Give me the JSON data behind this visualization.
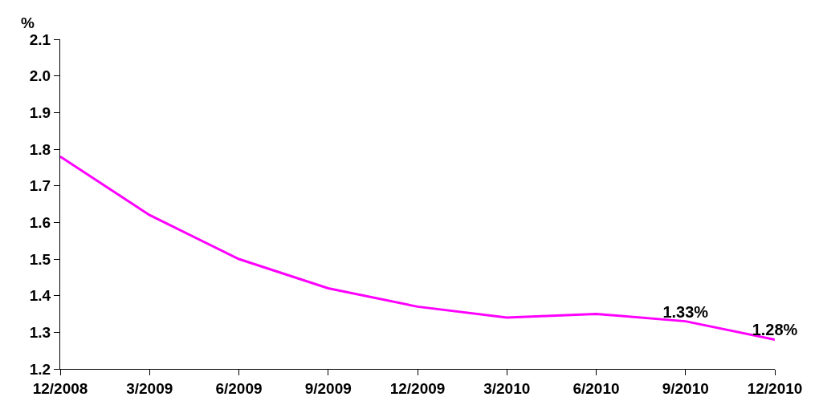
{
  "chart_data": {
    "type": "line",
    "ylabel": "%",
    "categories": [
      "12/2008",
      "3/2009",
      "6/2009",
      "9/2009",
      "12/2009",
      "3/2010",
      "6/2010",
      "9/2010",
      "12/2010"
    ],
    "series": [
      {
        "color": "#ff00ff",
        "values": [
          1.78,
          1.62,
          1.5,
          1.42,
          1.37,
          1.34,
          1.35,
          1.33,
          1.28
        ],
        "value_labels": [
          null,
          null,
          null,
          null,
          null,
          null,
          null,
          "1.33%",
          "1.28%"
        ]
      }
    ],
    "ylim": [
      1.2,
      2.1
    ],
    "yticks": [
      "1.2",
      "1.3",
      "1.4",
      "1.5",
      "1.6",
      "1.7",
      "1.8",
      "1.9",
      "2.0",
      "2.1"
    ],
    "grid": false,
    "marker": "none",
    "line_style": "solid"
  }
}
